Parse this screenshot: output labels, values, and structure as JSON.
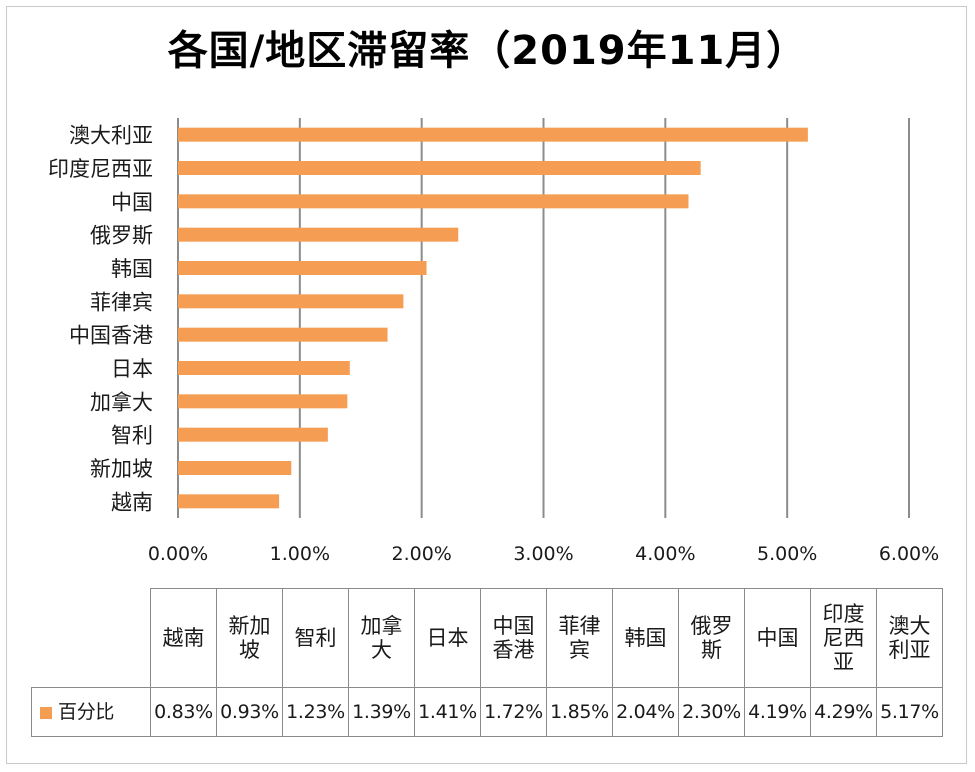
{
  "title": "各国/地区滞留率（2019年11月）",
  "colors": {
    "bar": "#F59D52",
    "grid": "#8c8c8c"
  },
  "chart_data": {
    "type": "bar",
    "orientation": "horizontal",
    "title": "各国/地区滞留率（2019年11月）",
    "categories": [
      "澳大利亚",
      "印度尼西亚",
      "中国",
      "俄罗斯",
      "韩国",
      "菲律宾",
      "中国香港",
      "日本",
      "加拿大",
      "智利",
      "新加坡",
      "越南"
    ],
    "values": [
      5.17,
      4.29,
      4.19,
      2.3,
      2.04,
      1.85,
      1.72,
      1.41,
      1.39,
      1.23,
      0.93,
      0.83
    ],
    "xlim": [
      0,
      6
    ],
    "x_ticks": [
      "0.00%",
      "1.00%",
      "2.00%",
      "3.00%",
      "4.00%",
      "5.00%",
      "6.00%"
    ],
    "grid": "vertical",
    "series": [
      {
        "name": "百分比",
        "values": [
          5.17,
          4.29,
          4.19,
          2.3,
          2.04,
          1.85,
          1.72,
          1.41,
          1.39,
          1.23,
          0.93,
          0.83
        ]
      }
    ],
    "legend": "data-table"
  },
  "table": {
    "series_name": "百分比",
    "columns": [
      "越南",
      "新加坡",
      "智利",
      "加拿大",
      "日本",
      "中国香港",
      "菲律宾",
      "韩国",
      "俄罗斯",
      "中国",
      "印度尼西亚",
      "澳大利亚"
    ],
    "values": [
      "0.83%",
      "0.93%",
      "1.23%",
      "1.39%",
      "1.41%",
      "1.72%",
      "1.85%",
      "2.04%",
      "2.30%",
      "4.19%",
      "4.29%",
      "5.17%"
    ]
  }
}
